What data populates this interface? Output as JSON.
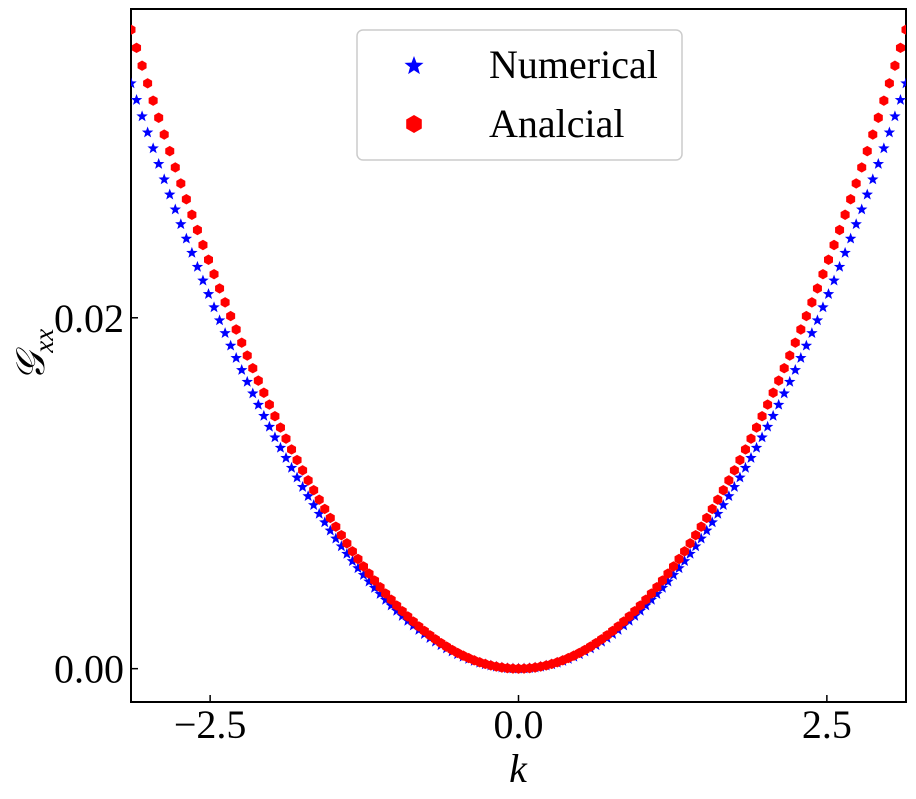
{
  "chart_data": {
    "type": "scatter",
    "xlabel": "k",
    "ylabel": "𝒢",
    "ylabel_subscript": "xx",
    "xlim": [
      -3.1416,
      3.1416
    ],
    "ylim": [
      -0.0019,
      0.0376
    ],
    "xticks": [
      -2.5,
      0.0,
      2.5
    ],
    "xtick_labels": [
      "−2.5",
      "0.0",
      "2.5"
    ],
    "yticks": [
      0.0,
      0.02
    ],
    "ytick_labels": [
      "0.00",
      "0.02"
    ],
    "grid": false,
    "legend_position": "top-center",
    "series": [
      {
        "name": "Numerical",
        "marker": "star",
        "color": "#0000ff",
        "x_range": [
          -3.1416,
          3.1416
        ],
        "num_points": 141,
        "model": "0.00338 * k^2",
        "values_at": {
          "k=-3.14": 0.0334,
          "k=-2.5": 0.0211,
          "k=-1.0": 0.0034,
          "k=0": 0.0,
          "k=1.0": 0.0034,
          "k=2.5": 0.0211,
          "k=3.14": 0.0334
        }
      },
      {
        "name": "Analcial",
        "marker": "hexagon",
        "color": "#ff0000",
        "x_range": [
          -3.1416,
          3.1416
        ],
        "num_points": 141,
        "model": "0.00369 * k^2",
        "values_at": {
          "k=-3.14": 0.0364,
          "k=-2.5": 0.0231,
          "k=-1.0": 0.0037,
          "k=0": 0.0,
          "k=1.0": 0.0037,
          "k=2.5": 0.0231,
          "k=3.14": 0.0364
        }
      }
    ]
  }
}
